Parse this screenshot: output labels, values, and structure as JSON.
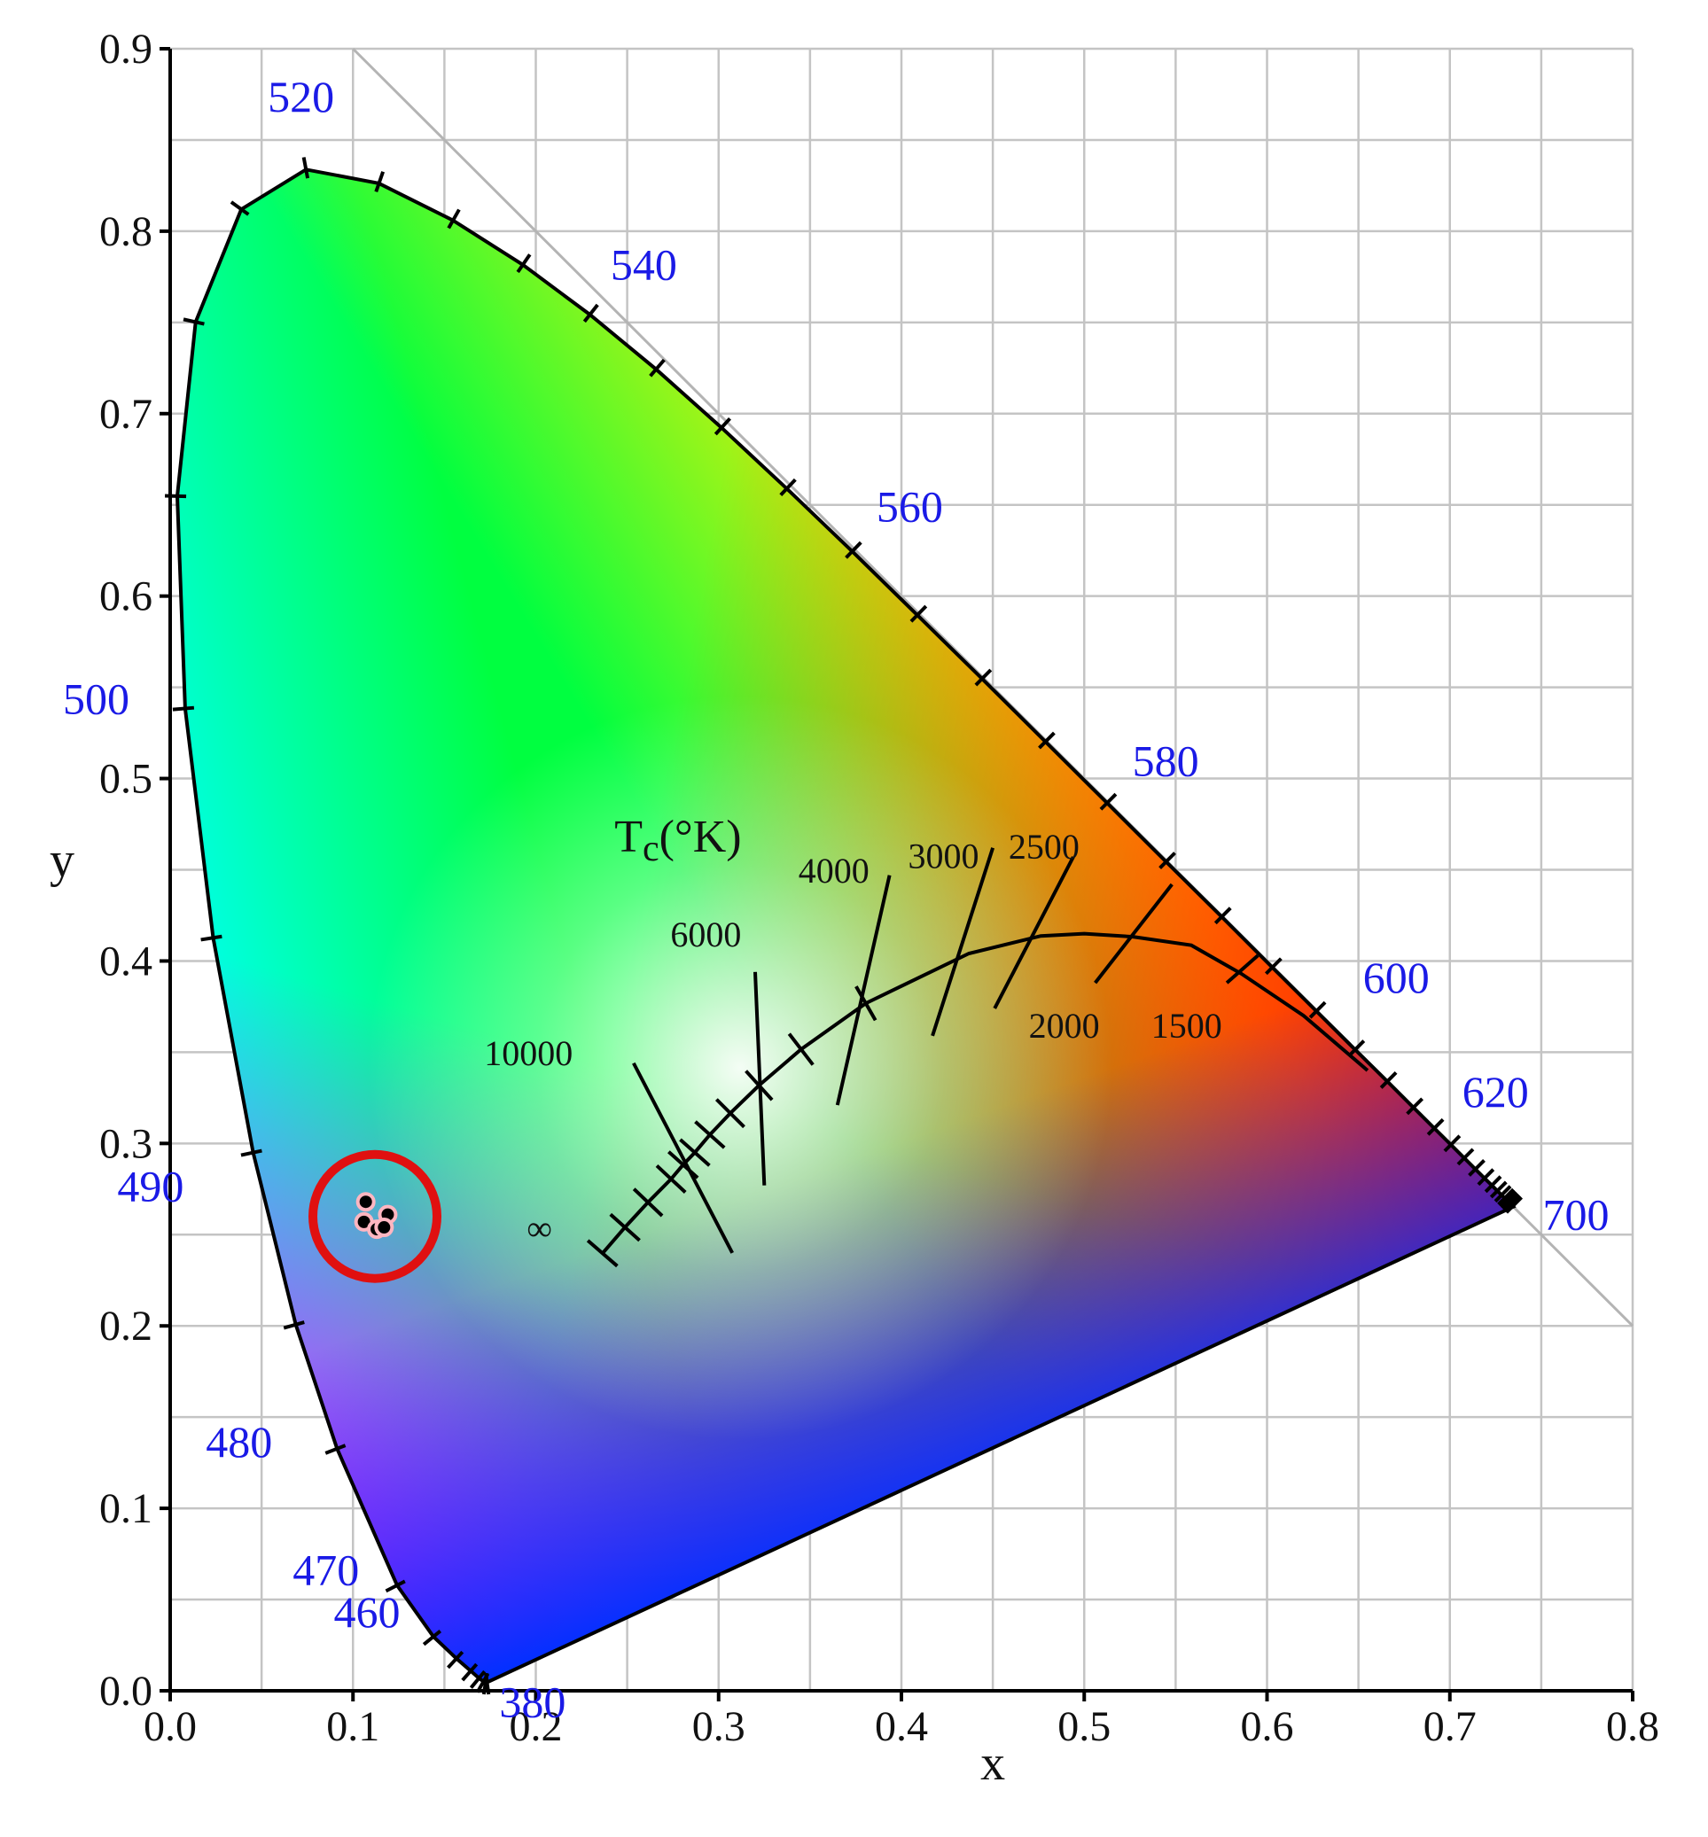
{
  "chart_data": {
    "type": "scatter",
    "title": "",
    "xlabel": "x",
    "ylabel": "y",
    "xlim": [
      0.0,
      0.8
    ],
    "ylim": [
      0.0,
      0.9
    ],
    "grid": true,
    "x_ticks": [
      "0.0",
      "0.1",
      "0.2",
      "0.3",
      "0.4",
      "0.5",
      "0.6",
      "0.7",
      "0.8"
    ],
    "y_ticks": [
      "0.0",
      "0.1",
      "0.2",
      "0.3",
      "0.4",
      "0.5",
      "0.6",
      "0.7",
      "0.8",
      "0.9"
    ],
    "spectral_locus": {
      "points": [
        {
          "x": 0.1741,
          "y": 0.005
        },
        {
          "x": 0.1733,
          "y": 0.0048
        },
        {
          "x": 0.1726,
          "y": 0.0048
        },
        {
          "x": 0.1714,
          "y": 0.0051
        },
        {
          "x": 0.1689,
          "y": 0.0069
        },
        {
          "x": 0.1644,
          "y": 0.0109
        },
        {
          "x": 0.1566,
          "y": 0.0177
        },
        {
          "x": 0.144,
          "y": 0.0297
        },
        {
          "x": 0.1241,
          "y": 0.0578
        },
        {
          "x": 0.0913,
          "y": 0.1327
        },
        {
          "x": 0.0687,
          "y": 0.2007
        },
        {
          "x": 0.0454,
          "y": 0.295
        },
        {
          "x": 0.0235,
          "y": 0.4127
        },
        {
          "x": 0.0082,
          "y": 0.5384
        },
        {
          "x": 0.0039,
          "y": 0.6548
        },
        {
          "x": 0.0139,
          "y": 0.7502
        },
        {
          "x": 0.0389,
          "y": 0.812
        },
        {
          "x": 0.0743,
          "y": 0.8338
        },
        {
          "x": 0.1142,
          "y": 0.8262
        },
        {
          "x": 0.1547,
          "y": 0.8059
        },
        {
          "x": 0.1929,
          "y": 0.7816
        },
        {
          "x": 0.2296,
          "y": 0.7543
        },
        {
          "x": 0.2658,
          "y": 0.7243
        },
        {
          "x": 0.3016,
          "y": 0.6923
        },
        {
          "x": 0.3373,
          "y": 0.6589
        },
        {
          "x": 0.3731,
          "y": 0.6245
        },
        {
          "x": 0.4087,
          "y": 0.5896
        },
        {
          "x": 0.4441,
          "y": 0.5547
        },
        {
          "x": 0.4788,
          "y": 0.5202
        },
        {
          "x": 0.5125,
          "y": 0.4866
        },
        {
          "x": 0.5448,
          "y": 0.4544
        },
        {
          "x": 0.5752,
          "y": 0.4242
        },
        {
          "x": 0.6029,
          "y": 0.3965
        },
        {
          "x": 0.627,
          "y": 0.3725
        },
        {
          "x": 0.6482,
          "y": 0.3514
        },
        {
          "x": 0.6658,
          "y": 0.334
        },
        {
          "x": 0.6801,
          "y": 0.3197
        },
        {
          "x": 0.6915,
          "y": 0.3083
        },
        {
          "x": 0.7006,
          "y": 0.2993
        },
        {
          "x": 0.7079,
          "y": 0.292
        },
        {
          "x": 0.714,
          "y": 0.2859
        },
        {
          "x": 0.719,
          "y": 0.2809
        },
        {
          "x": 0.723,
          "y": 0.277
        },
        {
          "x": 0.726,
          "y": 0.274
        },
        {
          "x": 0.7283,
          "y": 0.2717
        },
        {
          "x": 0.73,
          "y": 0.27
        },
        {
          "x": 0.7311,
          "y": 0.2689
        },
        {
          "x": 0.732,
          "y": 0.268
        },
        {
          "x": 0.7327,
          "y": 0.2673
        },
        {
          "x": 0.7334,
          "y": 0.2666
        },
        {
          "x": 0.734,
          "y": 0.266
        },
        {
          "x": 0.7344,
          "y": 0.2656
        },
        {
          "x": 0.7347,
          "y": 0.2653
        }
      ]
    },
    "wavelength_labels": [
      {
        "text": "380",
        "x": 0.174,
        "y": 0.005
      },
      {
        "text": "460",
        "x": 0.144,
        "y": 0.03
      },
      {
        "text": "470",
        "x": 0.124,
        "y": 0.058
      },
      {
        "text": "480",
        "x": 0.091,
        "y": 0.133
      },
      {
        "text": "490",
        "x": 0.045,
        "y": 0.295
      },
      {
        "text": "500",
        "x": 0.008,
        "y": 0.538
      },
      {
        "text": "520",
        "x": 0.074,
        "y": 0.834
      },
      {
        "text": "540",
        "x": 0.23,
        "y": 0.754
      },
      {
        "text": "560",
        "x": 0.373,
        "y": 0.624
      },
      {
        "text": "580",
        "x": 0.513,
        "y": 0.487
      },
      {
        "text": "600",
        "x": 0.627,
        "y": 0.373
      },
      {
        "text": "620",
        "x": 0.691,
        "y": 0.308
      },
      {
        "text": "700",
        "x": 0.735,
        "y": 0.265
      }
    ],
    "planckian_locus": {
      "points": [
        {
          "x": 0.2365,
          "y": 0.2398
        },
        {
          "x": 0.2488,
          "y": 0.254
        },
        {
          "x": 0.2614,
          "y": 0.2677
        },
        {
          "x": 0.274,
          "y": 0.2805
        },
        {
          "x": 0.2806,
          "y": 0.2883
        },
        {
          "x": 0.287,
          "y": 0.295
        },
        {
          "x": 0.2952,
          "y": 0.3048
        },
        {
          "x": 0.3064,
          "y": 0.3166
        },
        {
          "x": 0.3221,
          "y": 0.3318
        },
        {
          "x": 0.3451,
          "y": 0.3516
        },
        {
          "x": 0.3805,
          "y": 0.3768
        },
        {
          "x": 0.4369,
          "y": 0.4041
        },
        {
          "x": 0.4762,
          "y": 0.4137
        },
        {
          "x": 0.5,
          "y": 0.415
        },
        {
          "x": 0.5267,
          "y": 0.4133
        },
        {
          "x": 0.5586,
          "y": 0.4086
        },
        {
          "x": 0.586,
          "y": 0.393
        },
        {
          "x": 0.62,
          "y": 0.37
        },
        {
          "x": 0.655,
          "y": 0.34
        }
      ]
    },
    "isotherm_labels": [
      {
        "text": "∞",
        "x": 0.202,
        "y": 0.247
      },
      {
        "text": "10000",
        "x": 0.196,
        "y": 0.343
      },
      {
        "text": "6000",
        "x": 0.293,
        "y": 0.408
      },
      {
        "text": "4000",
        "x": 0.363,
        "y": 0.443
      },
      {
        "text": "3000",
        "x": 0.423,
        "y": 0.451
      },
      {
        "text": "2500",
        "x": 0.478,
        "y": 0.456
      },
      {
        "text": "2000",
        "x": 0.489,
        "y": 0.358
      },
      {
        "text": "1500",
        "x": 0.556,
        "y": 0.358
      }
    ],
    "tc_label": {
      "main": "T",
      "sub": "c",
      "rest": "(°K)",
      "x": 0.243,
      "y": 0.46
    },
    "data_points": [
      {
        "x": 0.107,
        "y": 0.268
      },
      {
        "x": 0.119,
        "y": 0.261
      },
      {
        "x": 0.106,
        "y": 0.257
      },
      {
        "x": 0.113,
        "y": 0.253
      },
      {
        "x": 0.117,
        "y": 0.254
      }
    ],
    "highlight_circle": {
      "cx": 0.112,
      "cy": 0.26,
      "color": "#e01010"
    },
    "colors": {
      "axis": "#000000",
      "grid": "#c4c4c4",
      "wavelength_text": "#1a1ae6",
      "point": "#000000",
      "point_edge": "#ffb6c1"
    }
  }
}
